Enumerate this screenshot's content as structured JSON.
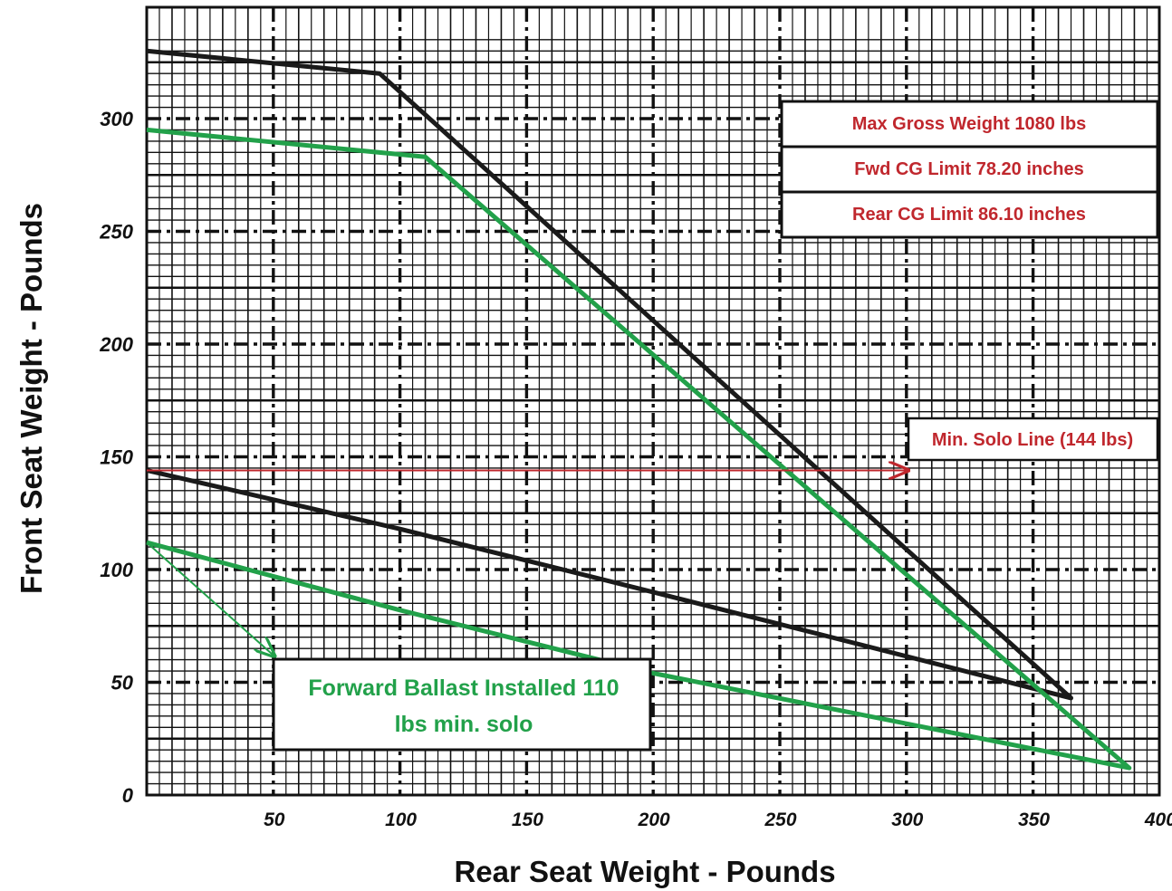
{
  "chart_data": {
    "type": "line",
    "xlabel": "Rear Seat Weight - Pounds",
    "ylabel": "Front Seat Weight - Pounds",
    "xlim": [
      0,
      400
    ],
    "ylim": [
      0,
      340
    ],
    "x_ticks": [
      50,
      100,
      150,
      200,
      250,
      300,
      350,
      400
    ],
    "y_ticks": [
      0,
      50,
      100,
      150,
      200,
      250,
      300
    ],
    "grid": true,
    "series": [
      {
        "color": "#1a1a1a",
        "x": [
          0,
          92,
          365,
          200,
          100,
          0
        ],
        "y": [
          330,
          320,
          43,
          90,
          118,
          144
        ]
      },
      {
        "color": "#22a14a",
        "x": [
          0,
          110,
          388,
          200,
          100,
          0
        ],
        "y": [
          295,
          283,
          12,
          54,
          82,
          112
        ]
      }
    ],
    "annotations": {
      "max_gross": "Max Gross Weight 1080 lbs",
      "fwd_cg": "Fwd CG Limit 78.20 inches",
      "rear_cg": "Rear CG Limit 86.10 inches",
      "min_solo": "Min. Solo Line (144 lbs)",
      "ballast_line1": "Forward Ballast Installed 110",
      "ballast_line2": "lbs min. solo"
    },
    "arrows": [
      {
        "color": "#c0272d",
        "from": [
          0,
          144
        ],
        "to": [
          300,
          144
        ]
      },
      {
        "color": "#22a14a",
        "from": [
          0,
          112
        ],
        "to": [
          50,
          62
        ]
      }
    ]
  }
}
